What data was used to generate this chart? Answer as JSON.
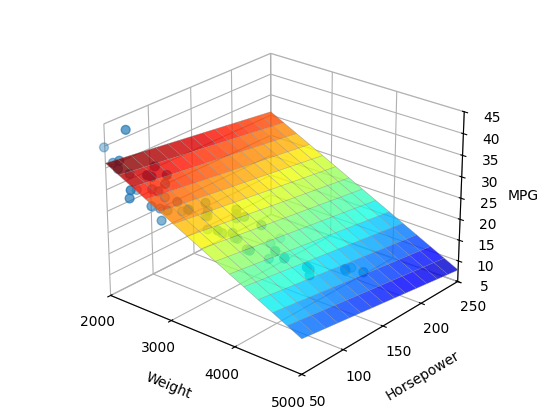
{
  "title": "",
  "xlabel": "Weight",
  "ylabel": "Horsepower",
  "zlabel": "MPG",
  "scatter_color": "#1f77b4",
  "scatter_size": 40,
  "xlim": [
    2000,
    5000
  ],
  "ylim": [
    50,
    250
  ],
  "zlim": [
    5,
    45
  ],
  "xticks": [
    2000,
    3000,
    4000,
    5000
  ],
  "yticks": [
    50,
    100,
    150,
    200,
    250
  ],
  "zticks": [
    5,
    10,
    15,
    20,
    25,
    30,
    35,
    40,
    45
  ],
  "weight": [
    2130,
    2672,
    1835,
    2774,
    2587,
    2130,
    2672,
    2604,
    2592,
    2789,
    2279,
    2401,
    2379,
    3068,
    3381,
    3574,
    3672,
    3381,
    3504,
    3449,
    3060,
    2957,
    2945,
    2671,
    2595,
    2700,
    2556,
    2244,
    2489,
    2050,
    2155,
    2585,
    2765,
    3055,
    3086,
    3209,
    3850,
    4250,
    3563,
    3609,
    3353,
    3609,
    3406,
    3445,
    3777,
    4274,
    4457,
    4638,
    4257,
    4054,
    3086,
    3209,
    3381,
    3574,
    3677,
    3850,
    4422,
    4457,
    4422,
    4638,
    4257,
    4054
  ],
  "horsepower": [
    65,
    70,
    60,
    65,
    65,
    55,
    55,
    55,
    75,
    75,
    65,
    50,
    50,
    90,
    100,
    115,
    130,
    100,
    100,
    90,
    88,
    76,
    76,
    65,
    69,
    70,
    62,
    60,
    68,
    55,
    55,
    68,
    82,
    88,
    88,
    96,
    110,
    120,
    98,
    98,
    80,
    98,
    96,
    96,
    108,
    118,
    148,
    155,
    116,
    105,
    88,
    96,
    100,
    115,
    118,
    110,
    150,
    155,
    150,
    155,
    116,
    105
  ],
  "mpg": [
    43,
    33,
    38,
    36,
    37,
    35,
    36,
    36,
    29,
    29,
    30,
    32,
    30,
    27,
    26,
    24,
    20,
    28,
    27,
    24,
    29,
    28,
    28,
    25,
    27,
    27,
    28,
    34,
    31,
    36,
    37,
    31,
    26,
    26,
    23,
    22,
    20,
    17,
    20,
    20,
    25,
    20,
    22,
    22,
    18,
    16,
    15,
    15,
    18,
    20,
    26,
    22,
    27,
    24,
    20,
    20,
    15,
    15,
    15,
    15,
    18,
    20
  ],
  "colormap": "jet",
  "surface_alpha": 0.8,
  "background_color": "#ffffff",
  "elev": 25,
  "azim": -50,
  "grid_n": 15
}
